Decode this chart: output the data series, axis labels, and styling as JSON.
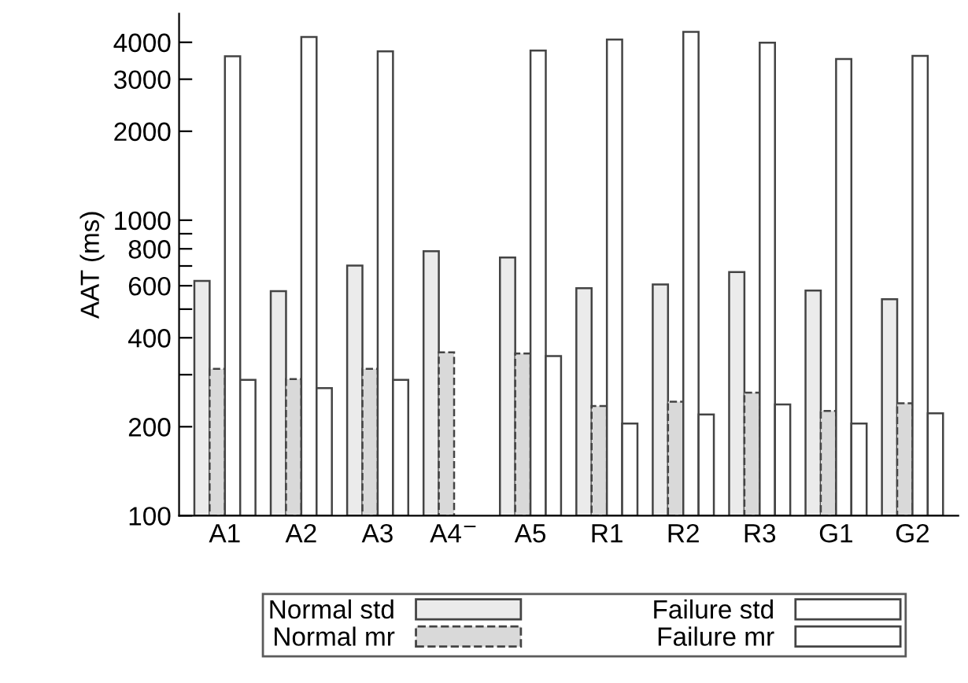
{
  "chart_data": {
    "type": "bar",
    "ylabel": "AAT (ms)",
    "log": "y",
    "legend": "bottom",
    "grid": false,
    "categories": [
      "A1",
      "A2",
      "A3",
      "A4$^{−}$",
      "A5",
      "R1",
      "R2",
      "R3",
      "G1",
      "G2"
    ],
    "series": [
      {
        "name": "Normal std",
        "color": "#ebebeb",
        "values": [
          623,
          575,
          702,
          785,
          748,
          589,
          606,
          667,
          578,
          540
        ]
      },
      {
        "name": "Normal mr",
        "color": "#d9d9d9",
        "values": [
          314,
          290,
          314,
          357,
          354,
          235,
          243,
          261,
          226,
          240
        ]
      },
      {
        "name": "Failure std",
        "color": "#ffffff",
        "values": [
          3585,
          4170,
          3726,
          null,
          3748,
          4087,
          4340,
          3990,
          3514,
          3597
        ]
      },
      {
        "name": "Failure mr",
        "color": "#ffffff",
        "values": [
          288,
          270,
          288,
          null,
          347,
          205,
          220,
          238,
          205,
          222
        ]
      }
    ],
    "ylim": [
      100,
      5000
    ],
    "yticks": [
      100,
      200,
      {
        "value": 300,
        "label": null
      },
      400,
      {
        "value": 500,
        "label": null
      },
      600,
      {
        "value": 700,
        "label": null
      },
      800,
      {
        "value": 900,
        "label": null
      },
      1000,
      2000,
      3000,
      4000
    ]
  }
}
